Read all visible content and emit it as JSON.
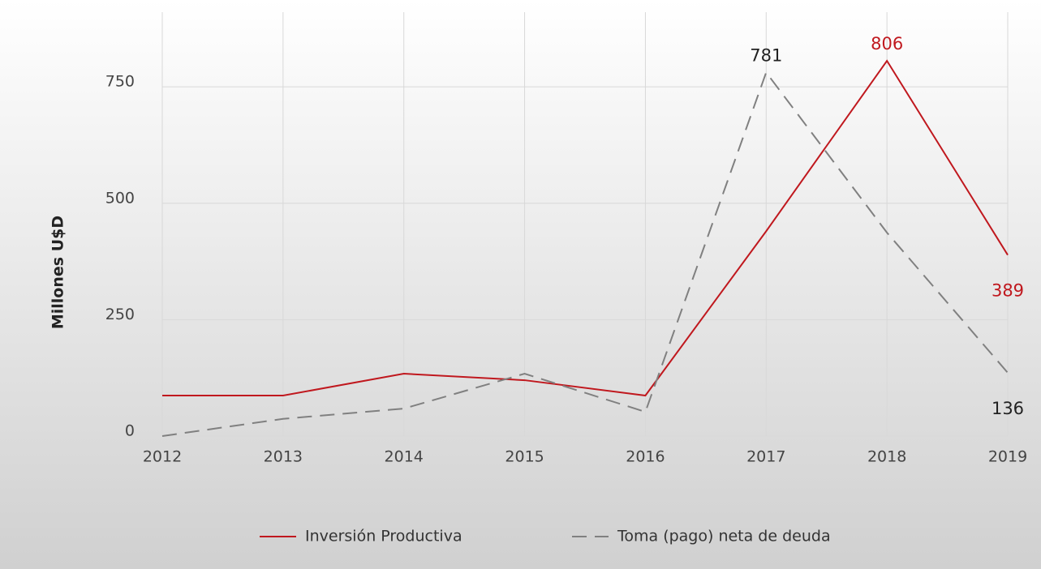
{
  "chart_data": {
    "type": "line",
    "y_label": "Millones U$D",
    "categories": [
      "2012",
      "2013",
      "2014",
      "2015",
      "2016",
      "2017",
      "2018",
      "2019"
    ],
    "series": [
      {
        "name": "Inversión Productiva",
        "color": "#c0181e",
        "dash": false,
        "values": [
          87,
          87,
          134,
          120,
          87,
          440,
          806,
          389
        ],
        "value_labels": [
          null,
          null,
          null,
          null,
          null,
          null,
          "806",
          "389"
        ]
      },
      {
        "name": "Toma (pago) neta de deuda",
        "color": "#808080",
        "dash": true,
        "values": [
          0,
          37,
          59,
          134,
          52,
          781,
          437,
          136
        ],
        "value_labels": [
          null,
          null,
          null,
          null,
          null,
          "781",
          null,
          "136"
        ]
      }
    ],
    "ylim": [
      0,
      900
    ],
    "yticks": [
      0,
      250,
      500,
      750
    ],
    "grid": true,
    "legend": "bottom"
  }
}
